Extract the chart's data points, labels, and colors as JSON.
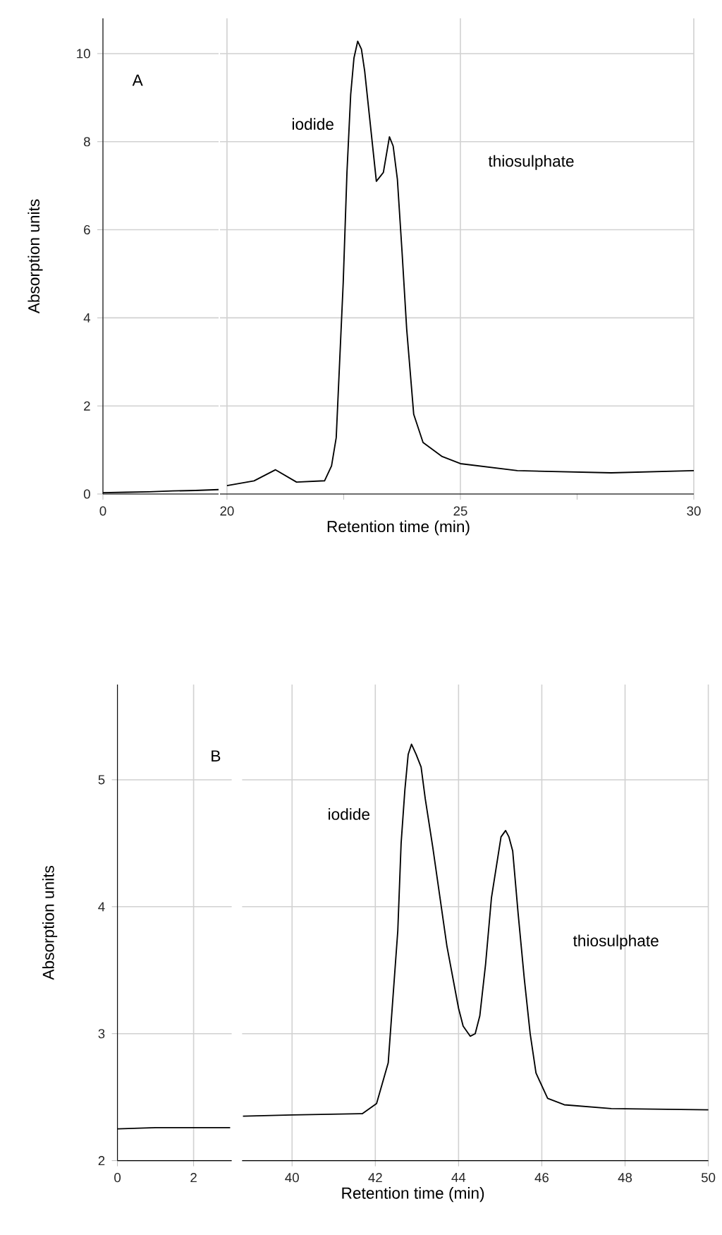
{
  "chart_data": [
    {
      "type": "line",
      "ylabel": "Absorption units",
      "annotations": [
        "A"
      ],
      "categories": [
        "0",
        null,
        null,
        null,
        null,
        null
      ],
      "ylim": [
        0,
        10.8
      ],
      "yticks": [
        0,
        2,
        4,
        6,
        8,
        10
      ],
      "grid": true,
      "series": [
        {
          "color": "#000000",
          "values": [
            0.03,
            0.04,
            0.05,
            0.07,
            0.08,
            0.1
          ]
        }
      ]
    },
    {
      "type": "line",
      "xlabel": "Retention time (min)",
      "annotations": [
        "iodide",
        "thiosulphate"
      ],
      "xlim": [
        19.85,
        30
      ],
      "xticks": [
        20,
        {
          "value": 22.5,
          "label": null
        },
        25,
        {
          "value": 27.5,
          "label": null
        },
        30
      ],
      "ylim": [
        0,
        10.8
      ],
      "yticks": [
        0,
        2,
        4,
        6,
        8,
        10
      ],
      "grid": true,
      "tick_labels": "x",
      "series": [
        {
          "color": "#000000",
          "x": [
            20,
            20.58,
            21.04,
            21.49,
            22.09,
            22.24,
            22.34,
            22.49,
            22.57,
            22.65,
            22.72,
            22.8,
            22.88,
            22.95,
            23.05,
            23.2,
            23.35,
            23.48,
            23.56,
            23.65,
            23.75,
            23.85,
            24.0,
            24.2,
            24.61,
            25.0,
            26.22,
            28.23,
            30
          ],
          "values": [
            0.19,
            0.3,
            0.55,
            0.27,
            0.3,
            0.64,
            1.28,
            4.8,
            7.3,
            9.07,
            9.9,
            10.28,
            10.1,
            9.6,
            8.6,
            7.1,
            7.3,
            8.11,
            7.9,
            7.15,
            5.5,
            3.74,
            1.81,
            1.17,
            0.85,
            0.69,
            0.53,
            0.48,
            0.53
          ]
        }
      ]
    },
    {
      "type": "line",
      "ylabel": "Absorption units",
      "annotations": [
        "B"
      ],
      "xlim": [
        0,
        3
      ],
      "xticks": [
        0,
        2
      ],
      "ylim": [
        2,
        5.75
      ],
      "yticks": [
        2,
        3,
        4,
        5
      ],
      "grid": true,
      "series": [
        {
          "color": "#000000",
          "x": [
            0,
            1,
            2,
            2.96
          ],
          "values": [
            2.25,
            2.26,
            2.26,
            2.26
          ]
        }
      ]
    },
    {
      "type": "line",
      "xlabel": "Retention time (min)",
      "annotations": [
        "iodide",
        "thiosulphate"
      ],
      "xlim": [
        38.8,
        50
      ],
      "xticks": [
        40,
        42,
        44,
        46,
        48,
        50
      ],
      "ylim": [
        2,
        5.75
      ],
      "yticks": [
        2,
        3,
        4,
        5
      ],
      "grid": true,
      "tick_labels": "x",
      "series": [
        {
          "color": "#000000",
          "x": [
            38.82,
            40,
            41.69,
            42.03,
            42.31,
            42.54,
            42.62,
            42.71,
            42.79,
            42.87,
            42.98,
            43.1,
            43.2,
            43.38,
            43.72,
            44.0,
            44.11,
            44.28,
            44.4,
            44.51,
            44.65,
            44.79,
            45.02,
            45.13,
            45.21,
            45.3,
            45.43,
            45.58,
            45.72,
            45.86,
            46.14,
            46.54,
            47.67,
            50
          ],
          "values": [
            2.35,
            2.36,
            2.37,
            2.45,
            2.77,
            3.81,
            4.5,
            4.92,
            5.2,
            5.28,
            5.2,
            5.1,
            4.85,
            4.47,
            3.69,
            3.2,
            3.06,
            2.98,
            3.0,
            3.14,
            3.55,
            4.07,
            4.55,
            4.6,
            4.55,
            4.44,
            3.95,
            3.43,
            3.0,
            2.69,
            2.49,
            2.44,
            2.41,
            2.4
          ]
        }
      ]
    }
  ]
}
